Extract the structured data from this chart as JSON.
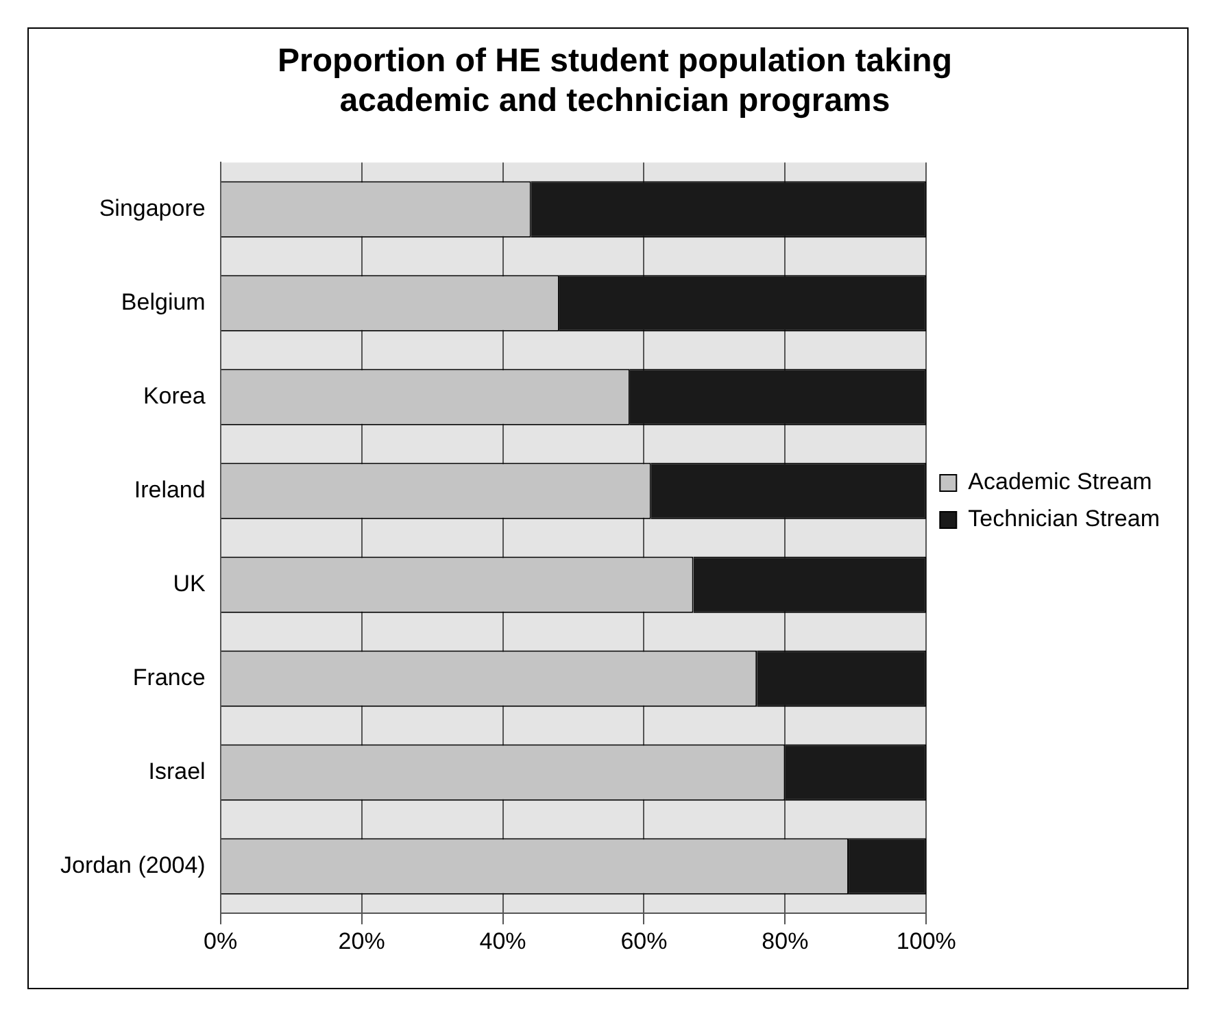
{
  "chart_data": {
    "type": "bar",
    "orientation": "horizontal",
    "stacked": true,
    "title": [
      "Proportion of HE student population taking",
      "academic and technician programs"
    ],
    "categories": [
      "Singapore",
      "Belgium",
      "Korea",
      "Ireland",
      "UK",
      "France",
      "Israel",
      "Jordan (2004)"
    ],
    "series": [
      {
        "name": "Academic Stream",
        "color": "#c4c4c4",
        "values": [
          44,
          48,
          58,
          61,
          67,
          76,
          80,
          89
        ]
      },
      {
        "name": "Technician Stream",
        "color": "#1a1a1a",
        "values": [
          56,
          52,
          42,
          39,
          33,
          24,
          20,
          11
        ]
      }
    ],
    "xlim": [
      0,
      100
    ],
    "xticks": [
      {
        "value": 0,
        "label": "0%"
      },
      {
        "value": 20,
        "label": "20%"
      },
      {
        "value": 40,
        "label": "40%"
      },
      {
        "value": 60,
        "label": "60%"
      },
      {
        "value": 80,
        "label": "80%"
      },
      {
        "value": 100,
        "label": "100%"
      }
    ],
    "grid": "x",
    "legend": "right"
  }
}
